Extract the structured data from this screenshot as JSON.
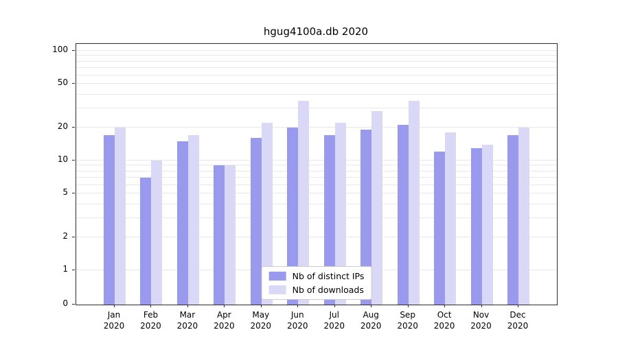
{
  "title": "hgug4100a.db 2020",
  "chart_data": {
    "type": "bar",
    "title": "hgug4100a.db 2020",
    "categories": [
      "Jan",
      "Feb",
      "Mar",
      "Apr",
      "May",
      "Jun",
      "Jul",
      "Aug",
      "Sep",
      "Oct",
      "Nov",
      "Dec"
    ],
    "year_label": "2020",
    "series": [
      {
        "name": "Nb of distinct IPs",
        "color": "#9999ee",
        "values": [
          17,
          7,
          15,
          9,
          16,
          20,
          17,
          19,
          21,
          12,
          13,
          17
        ]
      },
      {
        "name": "Nb of downloads",
        "color": "#d9d9f7",
        "values": [
          20,
          10,
          17,
          9,
          22,
          35,
          22,
          28,
          35,
          18,
          14,
          20
        ]
      }
    ],
    "yscale": "symlog",
    "ylim": [
      0,
      100
    ],
    "yticks": [
      0,
      1,
      2,
      5,
      10,
      20,
      50,
      100
    ],
    "grid_values": [
      1,
      2,
      3,
      4,
      5,
      6,
      7,
      8,
      9,
      10,
      20,
      30,
      40,
      50,
      60,
      70,
      80,
      90,
      100
    ],
    "grid": true,
    "legend_position": "lower center",
    "xlabel": "",
    "ylabel": ""
  }
}
